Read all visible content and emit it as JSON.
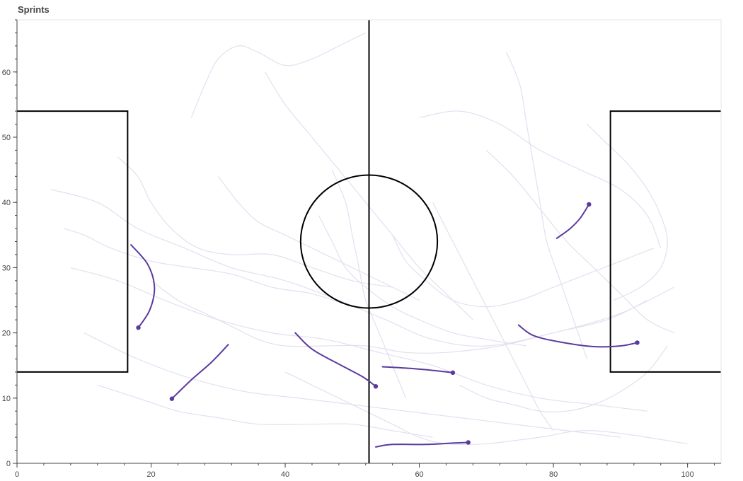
{
  "chart_data": {
    "type": "line",
    "title": "Sprints",
    "xlabel": "",
    "ylabel": "",
    "xlim": [
      0,
      105
    ],
    "ylim": [
      0,
      68
    ],
    "x_ticks": [
      0,
      20,
      40,
      60,
      80,
      100
    ],
    "y_ticks": [
      0,
      10,
      20,
      30,
      40,
      50,
      60
    ],
    "grid": false,
    "legend": "none",
    "colors": {
      "sprint": "#5b3a9d",
      "background_track": "#e2e0f0",
      "pitch": "#000000",
      "axis": "#444444"
    },
    "pitch_markings": {
      "halfway_line": [
        [
          52.5,
          0
        ],
        [
          52.5,
          68
        ]
      ],
      "center_circle": {
        "center": [
          52.5,
          34
        ],
        "radius": 10.2
      },
      "left_box": [
        [
          0,
          54
        ],
        [
          16.5,
          54
        ],
        [
          16.5,
          14
        ],
        [
          0,
          14
        ]
      ],
      "right_box": [
        [
          105,
          54
        ],
        [
          88.5,
          54
        ],
        [
          88.5,
          14
        ],
        [
          105,
          14
        ]
      ]
    },
    "series": [
      {
        "points": [
          [
            17,
            33.5
          ],
          [
            19.5,
            30.5
          ],
          [
            20.5,
            27
          ],
          [
            19.8,
            23.5
          ],
          [
            18.1,
            20.8
          ]
        ]
      },
      {
        "points": [
          [
            31.5,
            18.2
          ],
          [
            29,
            15.5
          ],
          [
            26,
            12.8
          ],
          [
            23.1,
            9.9
          ]
        ]
      },
      {
        "points": [
          [
            41.5,
            20
          ],
          [
            44,
            17.5
          ],
          [
            48,
            15.2
          ],
          [
            51.5,
            13.3
          ],
          [
            53.5,
            11.8
          ]
        ]
      },
      {
        "points": [
          [
            54.5,
            14.8
          ],
          [
            58,
            14.6
          ],
          [
            61.5,
            14.3
          ],
          [
            65,
            13.9
          ]
        ]
      },
      {
        "points": [
          [
            53.5,
            2.5
          ],
          [
            56,
            2.9
          ],
          [
            61,
            2.9
          ],
          [
            65,
            3.1
          ],
          [
            67.3,
            3.2
          ]
        ]
      },
      {
        "points": [
          [
            74.8,
            21.2
          ],
          [
            77,
            19.6
          ],
          [
            81,
            18.6
          ],
          [
            86,
            17.9
          ],
          [
            90,
            18.0
          ],
          [
            92.5,
            18.5
          ]
        ]
      },
      {
        "points": [
          [
            80.5,
            34.5
          ],
          [
            82.5,
            36
          ],
          [
            84,
            37.6
          ],
          [
            85.3,
            39.7
          ]
        ]
      }
    ],
    "background_tracks": [
      [
        [
          5,
          42
        ],
        [
          12,
          40
        ],
        [
          18,
          36
        ],
        [
          25,
          33
        ],
        [
          32,
          30
        ],
        [
          40,
          28
        ],
        [
          48,
          25
        ],
        [
          55,
          22
        ],
        [
          62,
          19
        ],
        [
          70,
          18
        ],
        [
          80,
          20
        ],
        [
          90,
          23
        ],
        [
          98,
          27
        ]
      ],
      [
        [
          8,
          30
        ],
        [
          15,
          28
        ],
        [
          22,
          25
        ],
        [
          30,
          22
        ],
        [
          38,
          20
        ],
        [
          46,
          19
        ],
        [
          54,
          17
        ],
        [
          62,
          15
        ],
        [
          70,
          12
        ],
        [
          78,
          10
        ],
        [
          86,
          9
        ],
        [
          94,
          8
        ]
      ],
      [
        [
          10,
          20
        ],
        [
          18,
          16
        ],
        [
          26,
          13
        ],
        [
          34,
          11
        ],
        [
          42,
          10
        ],
        [
          50,
          9
        ],
        [
          58,
          8
        ],
        [
          66,
          7
        ],
        [
          74,
          6
        ],
        [
          82,
          5
        ],
        [
          90,
          4
        ]
      ],
      [
        [
          26,
          53
        ],
        [
          28,
          58
        ],
        [
          30,
          62
        ],
        [
          33,
          64
        ],
        [
          36,
          63
        ],
        [
          40,
          61
        ],
        [
          44,
          62
        ],
        [
          48,
          64
        ],
        [
          52,
          66
        ]
      ],
      [
        [
          37,
          60
        ],
        [
          40,
          55
        ],
        [
          44,
          50
        ],
        [
          48,
          45
        ],
        [
          52,
          40
        ],
        [
          56,
          35
        ],
        [
          60,
          30
        ],
        [
          64,
          26
        ],
        [
          68,
          22
        ]
      ],
      [
        [
          60,
          53
        ],
        [
          66,
          54
        ],
        [
          72,
          52
        ],
        [
          78,
          48
        ],
        [
          84,
          45
        ],
        [
          90,
          42
        ],
        [
          94,
          38
        ],
        [
          96,
          33
        ]
      ],
      [
        [
          70,
          48
        ],
        [
          74,
          44
        ],
        [
          78,
          39
        ],
        [
          82,
          34
        ],
        [
          86,
          30
        ],
        [
          90,
          26
        ],
        [
          94,
          22
        ],
        [
          98,
          20
        ]
      ],
      [
        [
          7,
          36
        ],
        [
          10,
          35
        ],
        [
          14,
          33
        ],
        [
          20,
          31
        ],
        [
          26,
          30
        ],
        [
          32,
          29
        ],
        [
          38,
          27
        ],
        [
          44,
          26
        ],
        [
          50,
          24
        ]
      ],
      [
        [
          15,
          47
        ],
        [
          18,
          44
        ],
        [
          20,
          40
        ],
        [
          23,
          36
        ],
        [
          27,
          33
        ],
        [
          32,
          32
        ],
        [
          38,
          32
        ],
        [
          44,
          30
        ],
        [
          50,
          28
        ],
        [
          56,
          27
        ]
      ],
      [
        [
          45,
          38
        ],
        [
          47,
          34
        ],
        [
          49,
          30
        ],
        [
          52,
          27
        ],
        [
          56,
          24
        ],
        [
          60,
          22
        ],
        [
          65,
          20
        ],
        [
          70,
          19
        ],
        [
          76,
          18
        ]
      ],
      [
        [
          73,
          63
        ],
        [
          75,
          58
        ],
        [
          76,
          52
        ],
        [
          77,
          46
        ],
        [
          78,
          40
        ],
        [
          79,
          34
        ],
        [
          81,
          28
        ],
        [
          83,
          22
        ],
        [
          85,
          16
        ]
      ],
      [
        [
          56,
          35
        ],
        [
          58,
          31
        ],
        [
          61,
          28
        ],
        [
          65,
          25
        ],
        [
          70,
          24
        ],
        [
          75,
          25
        ],
        [
          80,
          27
        ],
        [
          85,
          29
        ],
        [
          90,
          31
        ],
        [
          95,
          33
        ]
      ],
      [
        [
          12,
          12
        ],
        [
          18,
          10
        ],
        [
          24,
          8
        ],
        [
          30,
          7
        ],
        [
          36,
          6
        ],
        [
          44,
          6
        ],
        [
          50,
          6
        ],
        [
          56,
          5
        ],
        [
          62,
          4
        ]
      ],
      [
        [
          40,
          14
        ],
        [
          44,
          12
        ],
        [
          48,
          10
        ],
        [
          52,
          8
        ],
        [
          56,
          6
        ],
        [
          60,
          4
        ],
        [
          64,
          3
        ],
        [
          70,
          3
        ],
        [
          78,
          4
        ],
        [
          86,
          5
        ],
        [
          100,
          3
        ]
      ],
      [
        [
          62,
          40
        ],
        [
          64,
          36
        ],
        [
          66,
          32
        ],
        [
          68,
          28
        ],
        [
          70,
          24
        ],
        [
          72,
          20
        ],
        [
          74,
          16
        ],
        [
          76,
          12
        ],
        [
          78,
          8
        ],
        [
          80,
          5
        ]
      ],
      [
        [
          30,
          44
        ],
        [
          33,
          40
        ],
        [
          36,
          37
        ],
        [
          40,
          35
        ],
        [
          44,
          33
        ],
        [
          48,
          31
        ],
        [
          52,
          29
        ],
        [
          56,
          27
        ],
        [
          60,
          25
        ]
      ],
      [
        [
          85,
          52
        ],
        [
          88,
          49
        ],
        [
          91,
          46
        ],
        [
          94,
          42
        ],
        [
          96,
          38
        ],
        [
          97,
          34
        ],
        [
          96,
          30
        ],
        [
          93,
          27
        ],
        [
          89,
          25
        ]
      ],
      [
        [
          20,
          28
        ],
        [
          24,
          25
        ],
        [
          28,
          23
        ],
        [
          32,
          21
        ],
        [
          36,
          19
        ],
        [
          40,
          18
        ],
        [
          46,
          18
        ],
        [
          52,
          18
        ],
        [
          58,
          17
        ],
        [
          64,
          17
        ],
        [
          72,
          18
        ],
        [
          80,
          20
        ],
        [
          88,
          22
        ],
        [
          94,
          25
        ]
      ],
      [
        [
          66,
          12
        ],
        [
          70,
          10
        ],
        [
          74,
          9
        ],
        [
          78,
          8
        ],
        [
          82,
          8
        ],
        [
          86,
          9
        ],
        [
          90,
          11
        ],
        [
          94,
          14
        ],
        [
          97,
          18
        ]
      ],
      [
        [
          47,
          45
        ],
        [
          49,
          40
        ],
        [
          50,
          35
        ],
        [
          51,
          30
        ],
        [
          52,
          25
        ],
        [
          54,
          20
        ],
        [
          56,
          15
        ],
        [
          58,
          10
        ]
      ]
    ]
  }
}
